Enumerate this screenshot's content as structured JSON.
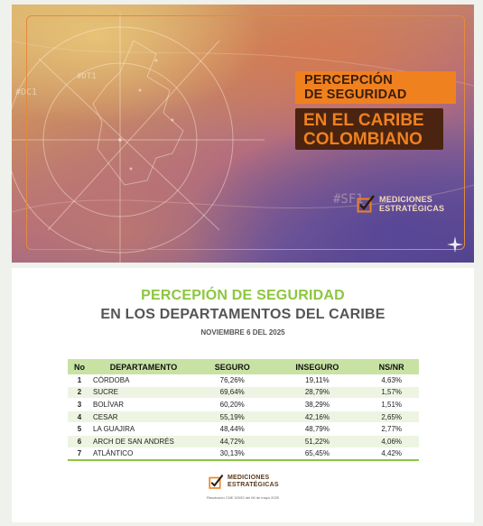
{
  "banner": {
    "title_line1": "PERCEPCIÓN\nDE SEGURIDAD",
    "title_line2": "EN EL CARIBE\nCOLOMBIANO",
    "brand_line1": "MEDICIONES",
    "brand_line2": "ESTRATÉGICAS",
    "map_labels": [
      "#DT1",
      "#DC1",
      "#SF1"
    ],
    "colors": {
      "orange": "#f0811f",
      "brown": "#4a2410"
    }
  },
  "report": {
    "heading": "PERCEPIÓN DE SEGURIDAD",
    "subheading": "EN LOS DEPARTAMENTOS DEL CARIBE",
    "date": "NOVIEMBRE 6 DEL 2025",
    "columns": [
      "No",
      "DEPARTAMENTO",
      "SEGURO",
      "INSEGURO",
      "NS/NR"
    ],
    "rows": [
      [
        "1",
        "CÓRDOBA",
        "76,26%",
        "19,11%",
        "4,63%"
      ],
      [
        "2",
        "SUCRE",
        "69,64%",
        "28,79%",
        "1,57%"
      ],
      [
        "3",
        "BOLÍVAR",
        "60,20%",
        "38,29%",
        "1,51%"
      ],
      [
        "4",
        "CESAR",
        "55,19%",
        "42,16%",
        "2,65%"
      ],
      [
        "5",
        "LA GUAJIRA",
        "48,44%",
        "48,79%",
        "2,77%"
      ],
      [
        "6",
        "ARCH DE SAN ANDRÉS",
        "44,72%",
        "51,22%",
        "4,06%"
      ],
      [
        "7",
        "ATLÁNTICO",
        "30,13%",
        "65,45%",
        "4,42%"
      ]
    ],
    "footer_brand_line1": "MEDICIONES",
    "footer_brand_line2": "ESTRATÉGICAS",
    "resolution": "Resolución CNE 32092 del 06 de mayo 2025",
    "colors": {
      "green": "#8cc63f",
      "header_bg": "#c8e2a4",
      "stripe": "#edf5e2"
    }
  }
}
